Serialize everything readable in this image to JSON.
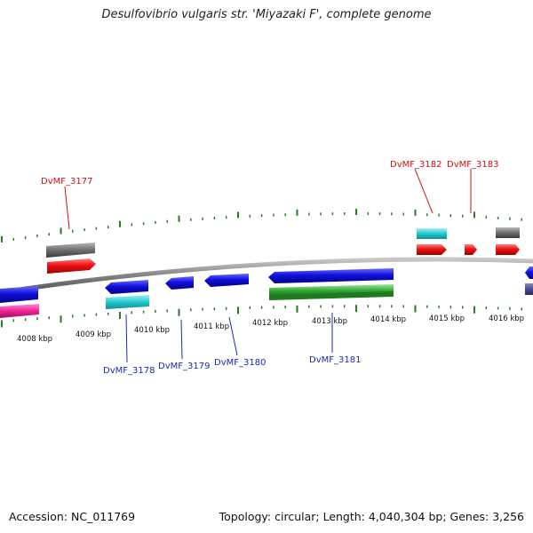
{
  "title": "Desulfovibrio vulgaris str. 'Miyazaki F', complete genome",
  "footer": {
    "accession": "Accession: NC_011769",
    "summary": "Topology: circular; Length: 4,040,304 bp; Genes: 3,256"
  },
  "colors": {
    "backbone": "#808080",
    "tick": "#2a7a2a",
    "red": "#ee1111",
    "blue": "#1111dd",
    "cyan": "#22c9d0",
    "gray": "#6e6e6e",
    "magenta": "#ee2299",
    "green": "#33aa33",
    "navy": "#4a4a90",
    "label_red": "#cc1111",
    "label_blue": "#1a2ab0"
  },
  "kbp_labels": [
    "4008 kbp",
    "4009 kbp",
    "4010 kbp",
    "4011 kbp",
    "4012 kbp",
    "4013 kbp",
    "4014 kbp",
    "4015 kbp",
    "4016 kbp"
  ],
  "gene_labels": {
    "top": [
      "DvMF_3177",
      "DvMF_3182",
      "DvMF_3183"
    ],
    "bottom": [
      "DvMF_3178",
      "DvMF_3179",
      "DvMF_3180",
      "DvMF_3181"
    ]
  }
}
